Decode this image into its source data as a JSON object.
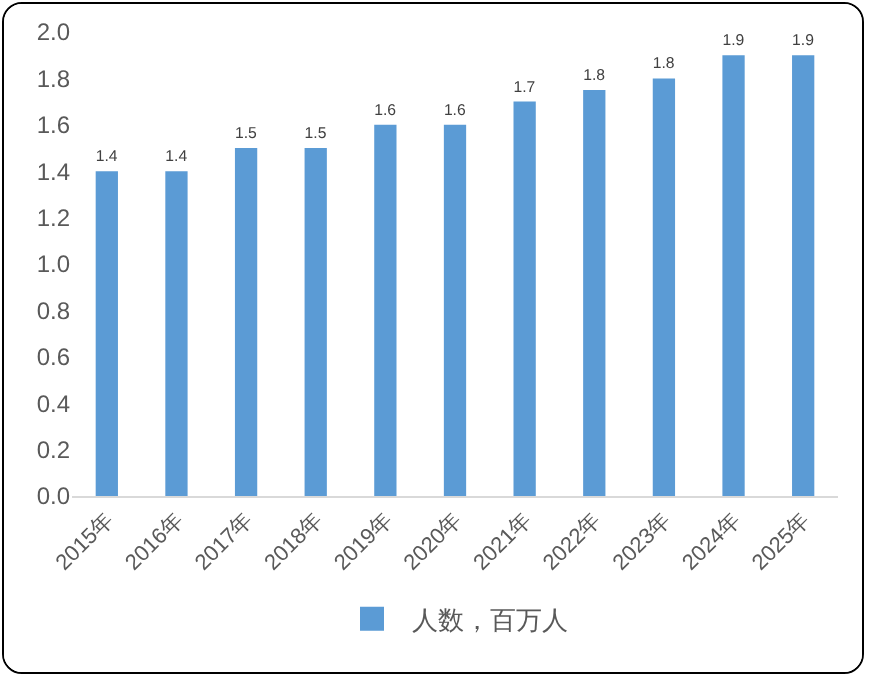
{
  "chart_data": {
    "type": "bar",
    "categories": [
      "2015年",
      "2016年",
      "2017年",
      "2018年",
      "2019年",
      "2020年",
      "2021年",
      "2022年",
      "2023年",
      "2024年",
      "2025年"
    ],
    "series": [
      {
        "name": "人数，百万人",
        "color": "#5b9bd5",
        "values": [
          1.4,
          1.4,
          1.5,
          1.5,
          1.6,
          1.6,
          1.7,
          1.75,
          1.8,
          1.9,
          1.9
        ],
        "value_labels": [
          "1.4",
          "1.4",
          "1.5",
          "1.5",
          "1.6",
          "1.6",
          "1.7",
          "1.8",
          "1.8",
          "1.9",
          "1.9"
        ]
      }
    ],
    "ylim": [
      0,
      2
    ],
    "yticks": [
      {
        "value": 0,
        "label": "0.0"
      },
      0.2,
      0.4,
      0.6,
      0.8,
      {
        "value": 1,
        "label": "1.0"
      },
      1.2,
      1.4,
      1.6,
      1.8,
      {
        "value": 2,
        "label": "2.0"
      }
    ],
    "grid": false,
    "legend": "bottom"
  }
}
